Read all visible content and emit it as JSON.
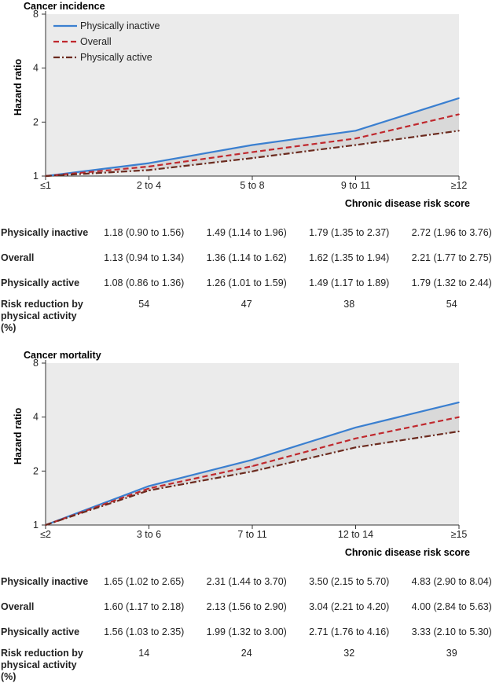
{
  "charts": [
    {
      "title": "Cancer incidence",
      "ylabel": "Hazard ratio",
      "xlabel": "Chronic disease risk score",
      "rows": [
        {
          "label": "Physically inactive",
          "values": [
            "1.18 (0.90 to 1.56)",
            "1.49 (1.14 to 1.96)",
            "1.79 (1.35 to 2.37)",
            "2.72 (1.96 to 3.76)"
          ]
        },
        {
          "label": "Overall",
          "values": [
            "1.13 (0.94 to 1.34)",
            "1.36 (1.14 to 1.62)",
            "1.62 (1.35 to 1.94)",
            "2.21 (1.77 to 2.75)"
          ]
        },
        {
          "label": "Physically active",
          "values": [
            "1.08 (0.86 to 1.36)",
            "1.26 (1.01 to 1.59)",
            "1.49 (1.17 to 1.89)",
            "1.79 (1.32 to 2.44)"
          ]
        },
        {
          "label": "Risk reduction by physical activity (%)",
          "values": [
            "54",
            "47",
            "38",
            "54"
          ]
        }
      ]
    },
    {
      "title": "Cancer mortality",
      "ylabel": "Hazard ratio",
      "xlabel": "Chronic disease risk score",
      "rows": [
        {
          "label": "Physically inactive",
          "values": [
            "1.65 (1.02 to 2.65)",
            "2.31 (1.44 to 3.70)",
            "3.50 (2.15 to 5.70)",
            "4.83 (2.90 to 8.04)"
          ]
        },
        {
          "label": "Overall",
          "values": [
            "1.60 (1.17 to 2.18)",
            "2.13 (1.56 to 2.90)",
            "3.04 (2.21 to 4.20)",
            "4.00 (2.84 to 5.63)"
          ]
        },
        {
          "label": "Physically active",
          "values": [
            "1.56 (1.03 to 2.35)",
            "1.99 (1.32 to 3.00)",
            "2.71 (1.76 to 4.16)",
            "3.33 (2.10 to 5.30)"
          ]
        },
        {
          "label": "Risk reduction by physical activity (%)",
          "values": [
            "14",
            "24",
            "32",
            "39"
          ]
        }
      ]
    }
  ],
  "chart_data": [
    {
      "type": "line",
      "title": "Cancer incidence",
      "xlabel": "Chronic disease risk score",
      "ylabel": "Hazard ratio",
      "y_scale": "log2",
      "ylim": [
        1,
        8
      ],
      "yticks": [
        1,
        2,
        4,
        8
      ],
      "grid": false,
      "legend_position": "top-left",
      "categories": [
        "≤1",
        "2 to 4",
        "5 to 8",
        "9 to 11",
        "≥12"
      ],
      "series": [
        {
          "name": "Physically inactive",
          "color": "#3a7fd0",
          "style": "solid",
          "values": [
            1,
            1.18,
            1.49,
            1.79,
            2.72
          ]
        },
        {
          "name": "Overall",
          "color": "#c0282d",
          "style": "dashed",
          "values": [
            1,
            1.13,
            1.36,
            1.62,
            2.21
          ]
        },
        {
          "name": "Physically active",
          "color": "#6b2a1e",
          "style": "dashdot",
          "values": [
            1,
            1.08,
            1.26,
            1.49,
            1.79
          ]
        }
      ]
    },
    {
      "type": "line",
      "title": "Cancer mortality",
      "xlabel": "Chronic disease risk score",
      "ylabel": "Hazard ratio",
      "y_scale": "log2",
      "ylim": [
        1,
        8
      ],
      "yticks": [
        1,
        2,
        4,
        8
      ],
      "grid": false,
      "categories": [
        "≤2",
        "3 to 6",
        "7 to 11",
        "12 to 14",
        "≥15"
      ],
      "series": [
        {
          "name": "Physically inactive",
          "color": "#3a7fd0",
          "style": "solid",
          "values": [
            1,
            1.65,
            2.31,
            3.5,
            4.83
          ]
        },
        {
          "name": "Overall",
          "color": "#c0282d",
          "style": "dashed",
          "values": [
            1,
            1.6,
            2.13,
            3.04,
            4.0
          ]
        },
        {
          "name": "Physically active",
          "color": "#6b2a1e",
          "style": "dashdot",
          "values": [
            1,
            1.56,
            1.99,
            2.71,
            3.33
          ]
        }
      ]
    }
  ]
}
